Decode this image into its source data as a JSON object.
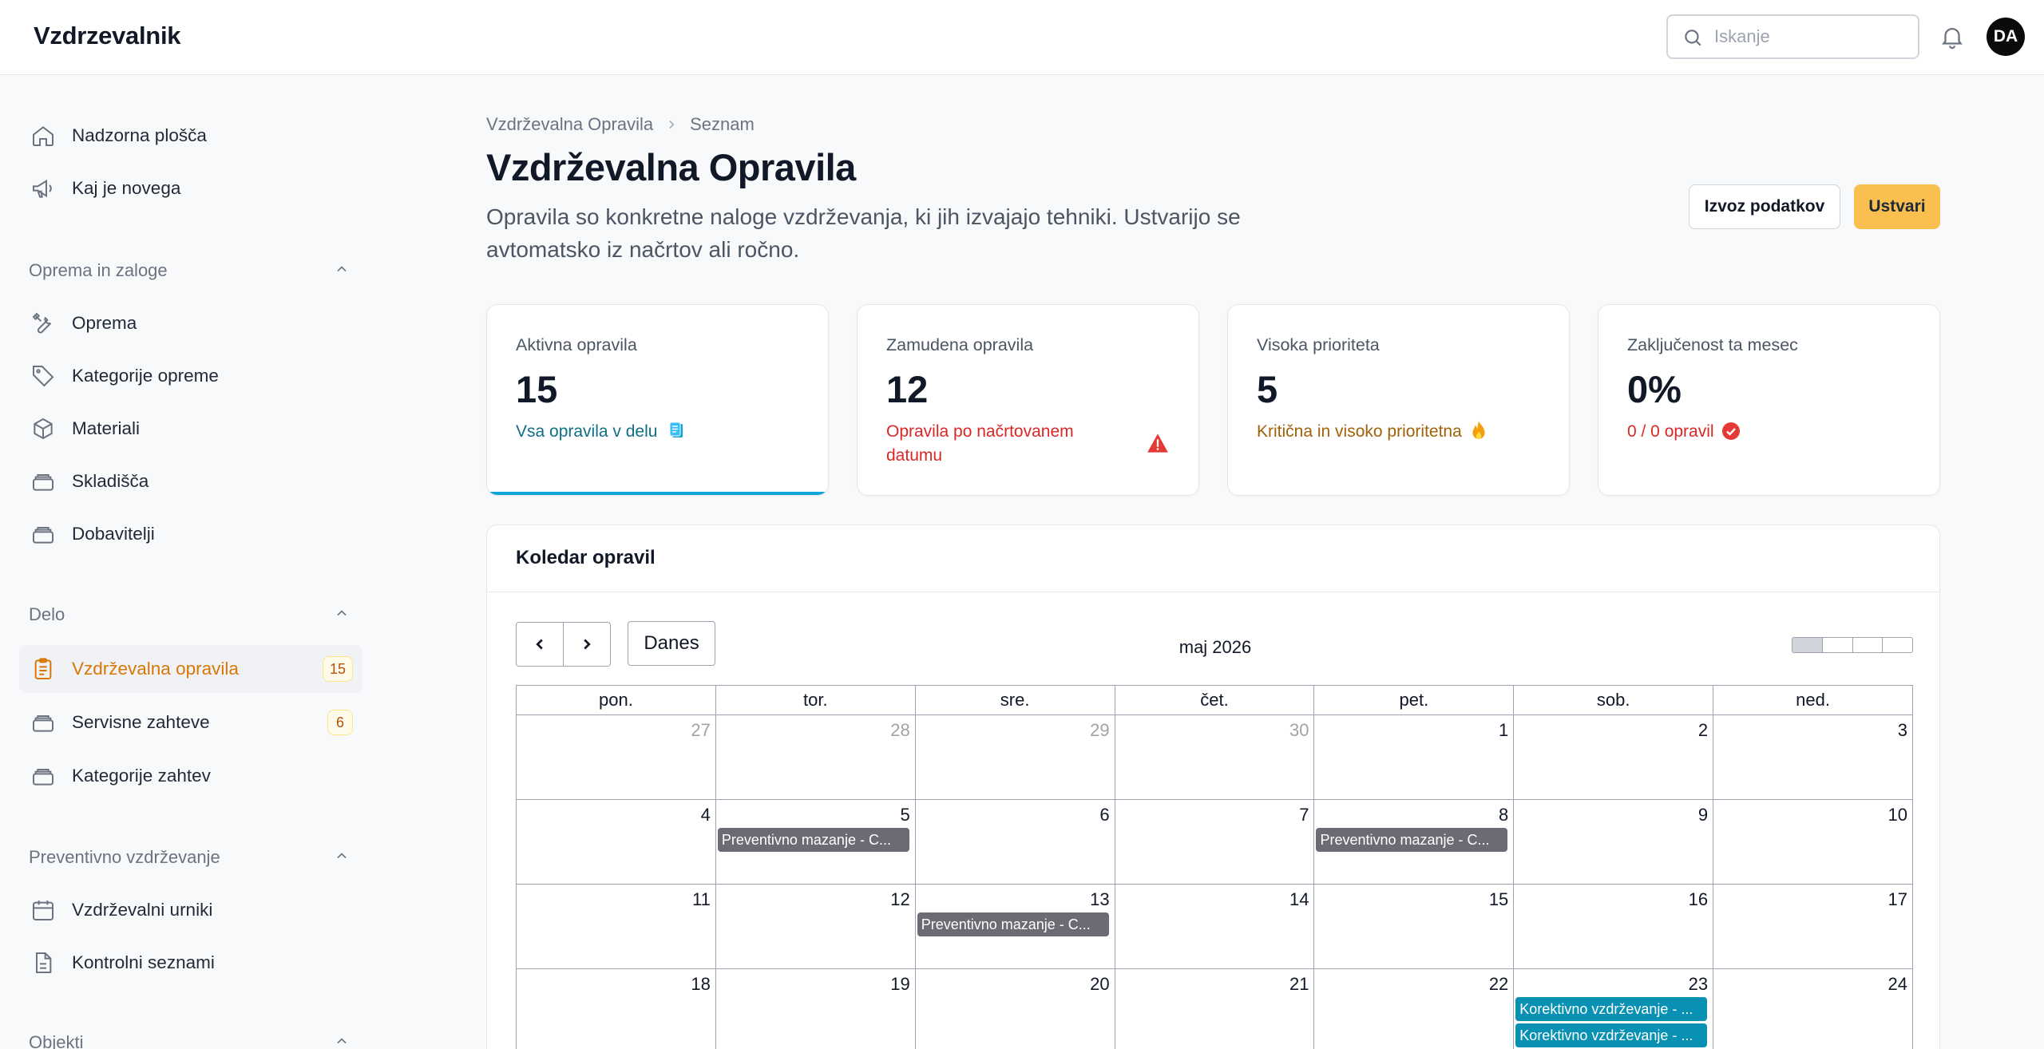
{
  "app": {
    "brand": "Vzdrzevalnik"
  },
  "topbar": {
    "search_placeholder": "Iskanje",
    "avatar_initials": "DA"
  },
  "sidebar": {
    "top_items": [
      {
        "label": "Nadzorna plošča",
        "icon": "home-icon"
      },
      {
        "label": "Kaj je novega",
        "icon": "megaphone-icon"
      }
    ],
    "groups": [
      {
        "title": "Oprema in zaloge",
        "items": [
          {
            "label": "Oprema",
            "icon": "tools-icon"
          },
          {
            "label": "Kategorije opreme",
            "icon": "tag-icon"
          },
          {
            "label": "Materiali",
            "icon": "cube-icon"
          },
          {
            "label": "Skladišča",
            "icon": "stack-icon"
          },
          {
            "label": "Dobavitelji",
            "icon": "stack-icon"
          }
        ]
      },
      {
        "title": "Delo",
        "items": [
          {
            "label": "Vzdrževalna opravila",
            "icon": "clipboard-icon",
            "badge": "15",
            "active": true
          },
          {
            "label": "Servisne zahteve",
            "icon": "stack-icon",
            "badge": "6"
          },
          {
            "label": "Kategorije zahtev",
            "icon": "stack-icon"
          }
        ]
      },
      {
        "title": "Preventivno vzdrževanje",
        "items": [
          {
            "label": "Vzdrževalni urniki",
            "icon": "calendar-icon"
          },
          {
            "label": "Kontrolni seznami",
            "icon": "document-icon"
          }
        ]
      },
      {
        "title": "Objekti",
        "items": []
      }
    ]
  },
  "breadcrumb": {
    "parent": "Vzdrževalna Opravila",
    "current": "Seznam"
  },
  "page": {
    "title": "Vzdrževalna Opravila",
    "description": "Opravila so konkretne naloge vzdrževanja, ki jih izvajajo tehniki. Ustvarijo se avtomatsko iz načrtov ali ročno.",
    "export_label": "Izvoz podatkov",
    "create_label": "Ustvari"
  },
  "stats": [
    {
      "title": "Aktivna opravila",
      "value": "15",
      "desc": "Vsa opravila v delu",
      "color": "#0e6f86",
      "icon": "clipboard-icon"
    },
    {
      "title": "Zamudena opravila",
      "value": "12",
      "desc": "Opravila po načrtovanem datumu",
      "color": "#dc2626",
      "icon": "warning-icon"
    },
    {
      "title": "Visoka prioriteta",
      "value": "5",
      "desc": "Kritična in visoko prioritetna",
      "color": "#a16207",
      "icon": "fire-icon"
    },
    {
      "title": "Zaključenost ta mesec",
      "value": "0%",
      "desc": "0 / 0 opravil",
      "color": "#dc2626",
      "icon": "check-circle-icon"
    }
  ],
  "calendar": {
    "title": "Koledar opravil",
    "today_label": "Danes",
    "month_label": "maj 2026",
    "weekdays": [
      "pon.",
      "tor.",
      "sre.",
      "čet.",
      "pet.",
      "sob.",
      "ned."
    ],
    "weeks": [
      [
        {
          "d": "27",
          "o": true
        },
        {
          "d": "28",
          "o": true
        },
        {
          "d": "29",
          "o": true
        },
        {
          "d": "30",
          "o": true
        },
        {
          "d": "1"
        },
        {
          "d": "2"
        },
        {
          "d": "3"
        }
      ],
      [
        {
          "d": "4"
        },
        {
          "d": "5",
          "events": [
            {
              "t": "Preventivno mazanje - C...",
              "c": "grey"
            }
          ]
        },
        {
          "d": "6"
        },
        {
          "d": "7"
        },
        {
          "d": "8",
          "events": [
            {
              "t": "Preventivno mazanje - C...",
              "c": "grey"
            }
          ]
        },
        {
          "d": "9"
        },
        {
          "d": "10"
        }
      ],
      [
        {
          "d": "11"
        },
        {
          "d": "12"
        },
        {
          "d": "13",
          "events": [
            {
              "t": "Preventivno mazanje - C...",
              "c": "grey"
            }
          ]
        },
        {
          "d": "14"
        },
        {
          "d": "15"
        },
        {
          "d": "16"
        },
        {
          "d": "17"
        }
      ],
      [
        {
          "d": "18"
        },
        {
          "d": "19"
        },
        {
          "d": "20"
        },
        {
          "d": "21"
        },
        {
          "d": "22"
        },
        {
          "d": "23",
          "events": [
            {
              "t": "Korektivno vzdrževanje - ...",
              "c": "teal"
            },
            {
              "t": "Korektivno vzdrževanje - ...",
              "c": "teal"
            }
          ]
        },
        {
          "d": "24"
        }
      ]
    ],
    "event_colors": {
      "grey": "#6b6b73",
      "teal": "#0891b2"
    }
  }
}
